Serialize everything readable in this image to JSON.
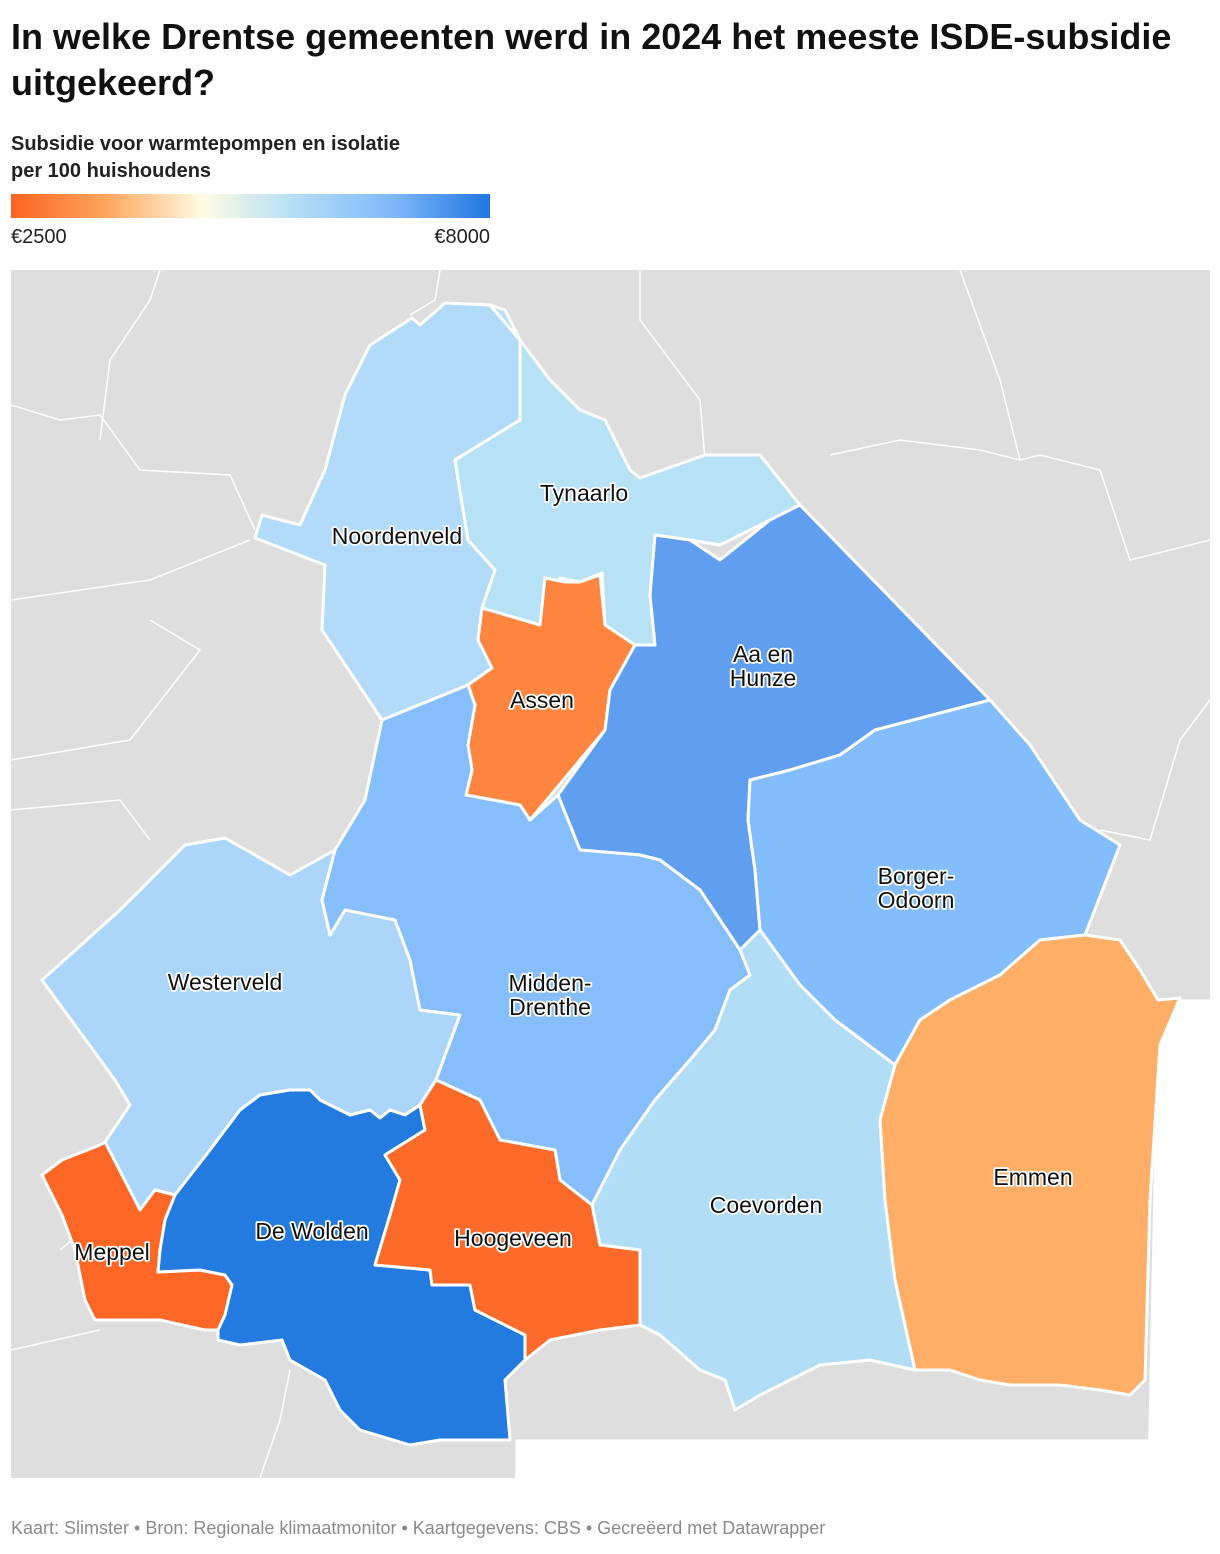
{
  "title": "In welke Drentse gemeenten werd in 2024 het meeste ISDE-subsidie uitgekeerd?",
  "subtitle_line1": "Subsidie voor warmtepompen en isolatie",
  "subtitle_line2": "per 100 huishoudens",
  "legend": {
    "min_label": "€2500",
    "max_label": "€8000",
    "min_value": 2500,
    "max_value": 8000,
    "gradient_colors": [
      "#fb6320",
      "#fda75e",
      "#fffbe3",
      "#b1ddf6",
      "#7eb8fb",
      "#1f76e0"
    ]
  },
  "municipalities": [
    {
      "name": "Noordenveld",
      "label_lines": [
        "Noordenveld"
      ],
      "color": "#b1dbf8"
    },
    {
      "name": "Tynaarlo",
      "label_lines": [
        "Tynaarlo"
      ],
      "color": "#b7e1f5"
    },
    {
      "name": "Assen",
      "label_lines": [
        "Assen"
      ],
      "color": "#fd853f"
    },
    {
      "name": "Aa en Hunze",
      "label_lines": [
        "Aa en",
        "Hunze"
      ],
      "color": "#609ff0"
    },
    {
      "name": "Borger-Odoorn",
      "label_lines": [
        "Borger-",
        "Odoorn"
      ],
      "color": "#84bdfb"
    },
    {
      "name": "Westerveld",
      "label_lines": [
        "Westerveld"
      ],
      "color": "#acd6f9"
    },
    {
      "name": "Midden-Drenthe",
      "label_lines": [
        "Midden-",
        "Drenthe"
      ],
      "color": "#86befc"
    },
    {
      "name": "Coevorden",
      "label_lines": [
        "Coevorden"
      ],
      "color": "#b1ddf6"
    },
    {
      "name": "Emmen",
      "label_lines": [
        "Emmen"
      ],
      "color": "#feae66"
    },
    {
      "name": "Meppel",
      "label_lines": [
        "Meppel"
      ],
      "color": "#fc6726"
    },
    {
      "name": "De Wolden",
      "label_lines": [
        "De Wolden"
      ],
      "color": "#237bdf"
    },
    {
      "name": "Hoogeveen",
      "label_lines": [
        "Hoogeveen"
      ],
      "color": "#fb6a28"
    }
  ],
  "footer": "Kaart: Slimster • Bron: Regionale klimaatmonitor • Kaartgegevens: CBS • Gecreëerd met Datawrapper"
}
